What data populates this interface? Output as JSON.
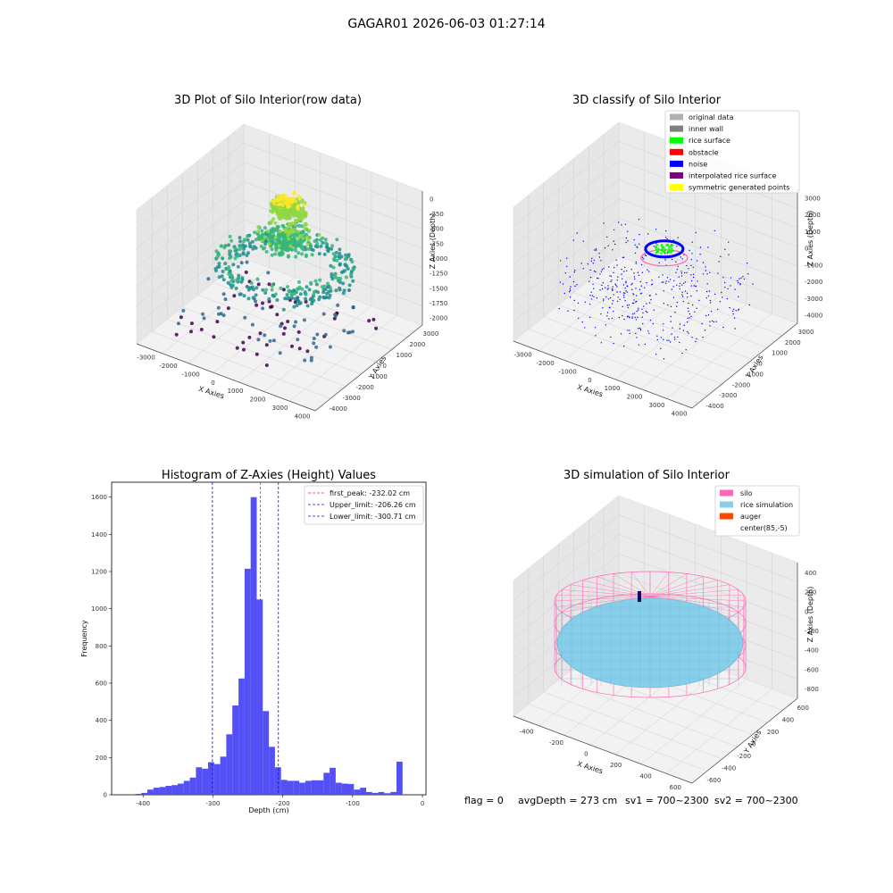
{
  "figure": {
    "suptitle": "GAGAR01 2026-06-03 01:27:14",
    "footer": {
      "flag": "flag = 0",
      "avg": "avgDepth = 273 cm",
      "sv1": "sv1 = 700~2300",
      "sv2": "sv2 = 700~2300"
    }
  },
  "chart_data": [
    {
      "type": "scatter",
      "title": "3D Plot of Silo Interior(row data)",
      "xlabel": "X Axies",
      "ylabel": "Y Axies",
      "zlabel": "Z Axies (Depth)",
      "x_ticks": [
        "-3000",
        "-2000",
        "-1000",
        "0",
        "1000",
        "2000",
        "3000",
        "4000"
      ],
      "y_ticks": [
        "-4000",
        "-3000",
        "-2000",
        "-1000",
        "0",
        "1000",
        "2000",
        "3000"
      ],
      "z_ticks": [
        "0",
        "-250",
        "-500",
        "-750",
        "-1000",
        "-1250",
        "-1500",
        "-1750",
        "-2000"
      ],
      "colormap": [
        "#440154",
        "#31688e",
        "#21918c",
        "#35b779",
        "#90d743",
        "#fde725"
      ],
      "grid": true
    },
    {
      "type": "scatter",
      "title": "3D classify of Silo Interior",
      "xlabel": "X Axies",
      "ylabel": "Y Axies",
      "zlabel": "Z Axies (Depth)",
      "x_ticks": [
        "-3000",
        "-2000",
        "-1000",
        "0",
        "1000",
        "2000",
        "3000",
        "4000"
      ],
      "y_ticks": [
        "-4000",
        "-3000",
        "-2000",
        "-1000",
        "0",
        "1000",
        "2000",
        "3000"
      ],
      "z_ticks": [
        "3000",
        "2000",
        "1000",
        "0",
        "-1000",
        "-2000",
        "-3000",
        "-4000"
      ],
      "legend_position": "top-right",
      "legend": [
        {
          "label": "original data",
          "color": "#b0b0b0"
        },
        {
          "label": "inner wall",
          "color": "#808080"
        },
        {
          "label": "rice surface",
          "color": "#00ff00"
        },
        {
          "label": "obstacle",
          "color": "#ff0000"
        },
        {
          "label": "noise",
          "color": "#0000ff"
        },
        {
          "label": "interpolated rice surface",
          "color": "#800080"
        },
        {
          "label": "symmetric generated points",
          "color": "#ffff00"
        }
      ],
      "grid": true
    },
    {
      "type": "bar",
      "title": "Histogram of Z-Axies (Height) Values",
      "xlabel": "Depth (cm)",
      "ylabel": "Frequency",
      "xlim": [
        -445,
        5
      ],
      "ylim": [
        0,
        1680
      ],
      "x_ticks": [
        -400,
        -300,
        -200,
        -100,
        0
      ],
      "y_ticks": [
        0,
        200,
        400,
        600,
        800,
        1000,
        1200,
        1400,
        1600
      ],
      "bar_color": "#4a47f5",
      "bins_start": -420,
      "bin_width": 8.7,
      "values": [
        1,
        5,
        10,
        28,
        38,
        42,
        48,
        52,
        60,
        75,
        92,
        148,
        140,
        175,
        165,
        205,
        325,
        480,
        625,
        1215,
        1600,
        1050,
        450,
        258,
        148,
        80,
        75,
        75,
        65,
        75,
        78,
        78,
        118,
        145,
        65,
        60,
        58,
        28,
        38,
        15,
        10,
        15,
        8,
        15,
        178
      ],
      "vlines": [
        {
          "label": "first_peak: -232.02 cm",
          "x": -232.02,
          "color": "#ff2020"
        },
        {
          "label": "Upper_limit: -206.26 cm",
          "x": -206.26,
          "color": "#1010ee"
        },
        {
          "label": "Lower_limit: -300.71 cm",
          "x": -300.71,
          "color": "#1010ee"
        }
      ],
      "legend_position": "top-right",
      "grid": false
    },
    {
      "type": "scatter",
      "title": "3D simulation of Silo Interior",
      "xlabel": "X Axies",
      "ylabel": "Y Axies",
      "zlabel": "Z Axies (Depth)",
      "x_ticks": [
        "-400",
        "-200",
        "0",
        "200",
        "400",
        "600"
      ],
      "y_ticks": [
        "-600",
        "-400",
        "-200",
        "0",
        "200",
        "400",
        "600"
      ],
      "z_ticks": [
        "400",
        "200",
        "0",
        "-200",
        "-400",
        "-600",
        "-800"
      ],
      "legend_position": "top-right",
      "legend": [
        {
          "label": "silo",
          "color": "#ff69b4"
        },
        {
          "label": "rice simulation",
          "color": "#87ceeb"
        },
        {
          "label": "auger",
          "color": "#ff4500"
        },
        {
          "label": "center(85,-5)",
          "color": "none"
        }
      ],
      "grid": true
    }
  ]
}
